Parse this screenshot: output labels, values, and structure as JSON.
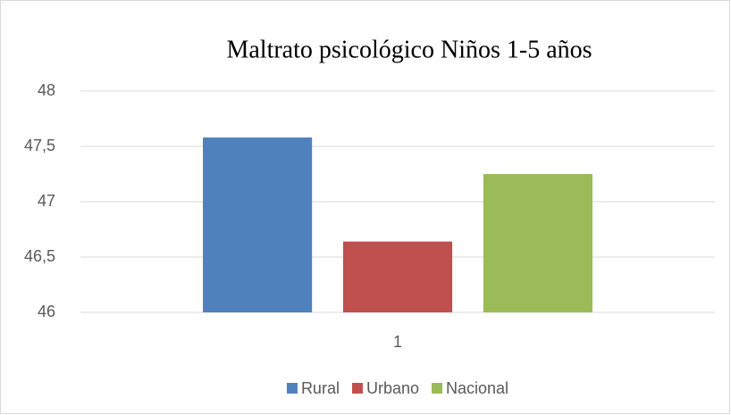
{
  "chart_data": {
    "type": "bar",
    "title": "Maltrato psicológico Niños 1-5 años",
    "categories": [
      "1"
    ],
    "series": [
      {
        "name": "Rural",
        "color": "#4f81bd",
        "values": [
          47.58
        ]
      },
      {
        "name": "Urbano",
        "color": "#c0504d",
        "values": [
          46.64
        ]
      },
      {
        "name": "Nacional",
        "color": "#9bbb59",
        "values": [
          47.25
        ]
      }
    ],
    "ylim": [
      46,
      48
    ],
    "yticks": [
      46,
      {
        "value": 46.5,
        "label": "46,5"
      },
      47,
      {
        "value": 47.5,
        "label": "47,5"
      },
      48
    ],
    "grid": true,
    "legend": "bottom"
  }
}
